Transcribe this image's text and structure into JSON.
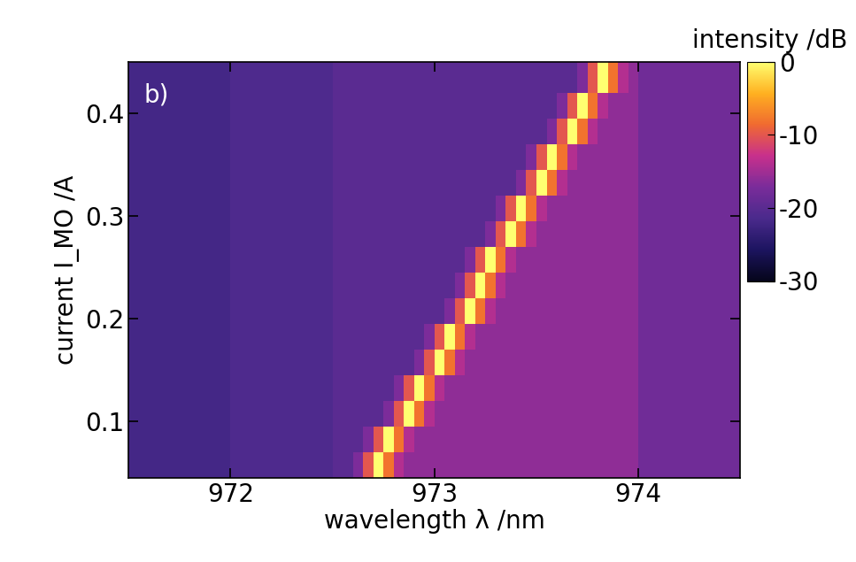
{
  "chart_data": {
    "type": "heatmap",
    "x_label": "wavelength λ /nm",
    "y_label": "current I_MO /A",
    "annotations": [
      {
        "text": "b)"
      }
    ],
    "xlim": [
      971.5,
      974.5
    ],
    "xticks": [
      972,
      973,
      974
    ],
    "ylim": [
      0.045,
      0.45
    ],
    "yticks": [
      0.1,
      0.2,
      0.3,
      0.4
    ],
    "x_edges": [
      971.5,
      972.0,
      972.5,
      972.55,
      972.6,
      972.65,
      972.7,
      972.75,
      972.8,
      972.85,
      972.9,
      972.95,
      973.0,
      973.05,
      973.1,
      973.15,
      973.2,
      973.25,
      973.3,
      973.35,
      973.4,
      973.45,
      973.5,
      973.55,
      973.6,
      973.65,
      973.7,
      973.75,
      973.8,
      973.85,
      973.9,
      973.95,
      974.0,
      974.5
    ],
    "y_edges": [
      0.045,
      0.07,
      0.095,
      0.12,
      0.145,
      0.17,
      0.195,
      0.22,
      0.245,
      0.27,
      0.295,
      0.32,
      0.345,
      0.37,
      0.395,
      0.42,
      0.45
    ],
    "cells": [
      [
        -22,
        -21,
        -20,
        -20,
        -17,
        -10,
        0,
        -8,
        -14,
        -16,
        -16,
        -16,
        -16,
        -16,
        -16,
        -16,
        -16,
        -16,
        -16,
        -16,
        -16,
        -16,
        -16,
        -16,
        -16,
        -16,
        -16,
        -16,
        -16,
        -16,
        -16,
        -16,
        -18
      ],
      [
        -22,
        -21,
        -20,
        -20,
        -20,
        -17,
        -10,
        0,
        -8,
        -14,
        -16,
        -16,
        -16,
        -16,
        -16,
        -16,
        -16,
        -16,
        -16,
        -16,
        -16,
        -16,
        -16,
        -16,
        -16,
        -16,
        -16,
        -16,
        -16,
        -16,
        -16,
        -16,
        -18
      ],
      [
        -22,
        -21,
        -20,
        -20,
        -20,
        -20,
        -20,
        -17,
        -10,
        0,
        -8,
        -14,
        -16,
        -16,
        -16,
        -16,
        -16,
        -16,
        -16,
        -16,
        -16,
        -16,
        -16,
        -16,
        -16,
        -16,
        -16,
        -16,
        -16,
        -16,
        -16,
        -16,
        -18
      ],
      [
        -22,
        -21,
        -20,
        -20,
        -20,
        -20,
        -20,
        -20,
        -17,
        -10,
        0,
        -8,
        -14,
        -16,
        -16,
        -16,
        -16,
        -16,
        -16,
        -16,
        -16,
        -16,
        -16,
        -16,
        -16,
        -16,
        -16,
        -16,
        -16,
        -16,
        -16,
        -16,
        -18
      ],
      [
        -22,
        -21,
        -20,
        -20,
        -20,
        -20,
        -20,
        -20,
        -20,
        -20,
        -17,
        -10,
        0,
        -8,
        -14,
        -16,
        -16,
        -16,
        -16,
        -16,
        -16,
        -16,
        -16,
        -16,
        -16,
        -16,
        -16,
        -16,
        -16,
        -16,
        -16,
        -16,
        -18
      ],
      [
        -22,
        -21,
        -20,
        -20,
        -20,
        -20,
        -20,
        -20,
        -20,
        -20,
        -20,
        -17,
        -10,
        0,
        -8,
        -14,
        -16,
        -16,
        -16,
        -16,
        -16,
        -16,
        -16,
        -16,
        -16,
        -16,
        -16,
        -16,
        -16,
        -16,
        -16,
        -16,
        -18
      ],
      [
        -22,
        -21,
        -20,
        -20,
        -20,
        -20,
        -20,
        -20,
        -20,
        -20,
        -20,
        -20,
        -20,
        -17,
        -10,
        0,
        -8,
        -14,
        -16,
        -16,
        -16,
        -16,
        -16,
        -16,
        -16,
        -16,
        -16,
        -16,
        -16,
        -16,
        -16,
        -16,
        -18
      ],
      [
        -22,
        -21,
        -20,
        -20,
        -20,
        -20,
        -20,
        -20,
        -20,
        -20,
        -20,
        -20,
        -20,
        -20,
        -17,
        -10,
        0,
        -8,
        -14,
        -16,
        -16,
        -16,
        -16,
        -16,
        -16,
        -16,
        -16,
        -16,
        -16,
        -16,
        -16,
        -16,
        -18
      ],
      [
        -22,
        -21,
        -20,
        -20,
        -20,
        -20,
        -20,
        -20,
        -20,
        -20,
        -20,
        -20,
        -20,
        -20,
        -20,
        -17,
        -10,
        0,
        -8,
        -14,
        -16,
        -16,
        -16,
        -16,
        -16,
        -16,
        -16,
        -16,
        -16,
        -16,
        -16,
        -16,
        -18
      ],
      [
        -22,
        -21,
        -20,
        -20,
        -20,
        -20,
        -20,
        -20,
        -20,
        -20,
        -20,
        -20,
        -20,
        -20,
        -20,
        -20,
        -20,
        -17,
        -10,
        0,
        -8,
        -14,
        -16,
        -16,
        -16,
        -16,
        -16,
        -16,
        -16,
        -16,
        -16,
        -16,
        -18
      ],
      [
        -22,
        -21,
        -20,
        -20,
        -20,
        -20,
        -20,
        -20,
        -20,
        -20,
        -20,
        -20,
        -20,
        -20,
        -20,
        -20,
        -20,
        -20,
        -17,
        -10,
        0,
        -8,
        -14,
        -16,
        -16,
        -16,
        -16,
        -16,
        -16,
        -16,
        -16,
        -16,
        -18
      ],
      [
        -22,
        -21,
        -20,
        -20,
        -20,
        -20,
        -20,
        -20,
        -20,
        -20,
        -20,
        -20,
        -20,
        -20,
        -20,
        -20,
        -20,
        -20,
        -20,
        -20,
        -17,
        -10,
        0,
        -8,
        -14,
        -16,
        -16,
        -16,
        -16,
        -16,
        -16,
        -16,
        -18
      ],
      [
        -22,
        -21,
        -20,
        -20,
        -20,
        -20,
        -20,
        -20,
        -20,
        -20,
        -20,
        -20,
        -20,
        -20,
        -20,
        -20,
        -20,
        -20,
        -20,
        -20,
        -20,
        -17,
        -10,
        0,
        -8,
        -14,
        -16,
        -16,
        -16,
        -16,
        -16,
        -16,
        -18
      ],
      [
        -22,
        -21,
        -20,
        -20,
        -20,
        -20,
        -20,
        -20,
        -20,
        -20,
        -20,
        -20,
        -20,
        -20,
        -20,
        -20,
        -20,
        -20,
        -20,
        -20,
        -20,
        -20,
        -20,
        -17,
        -10,
        0,
        -8,
        -14,
        -16,
        -16,
        -16,
        -16,
        -18
      ],
      [
        -22,
        -21,
        -20,
        -20,
        -20,
        -20,
        -20,
        -20,
        -20,
        -20,
        -20,
        -20,
        -20,
        -20,
        -20,
        -20,
        -20,
        -20,
        -20,
        -20,
        -20,
        -20,
        -20,
        -20,
        -17,
        -10,
        0,
        -8,
        -14,
        -16,
        -16,
        -16,
        -18
      ],
      [
        -22,
        -21,
        -20,
        -20,
        -20,
        -20,
        -20,
        -20,
        -20,
        -20,
        -20,
        -20,
        -20,
        -20,
        -20,
        -20,
        -20,
        -20,
        -20,
        -20,
        -20,
        -20,
        -20,
        -20,
        -20,
        -20,
        -17,
        -10,
        0,
        -8,
        -14,
        -16,
        -18
      ]
    ],
    "colorbar": {
      "label": "intensity /dB",
      "range": [
        -30,
        0
      ],
      "ticks": [
        0,
        -10,
        -20,
        -30
      ]
    }
  }
}
